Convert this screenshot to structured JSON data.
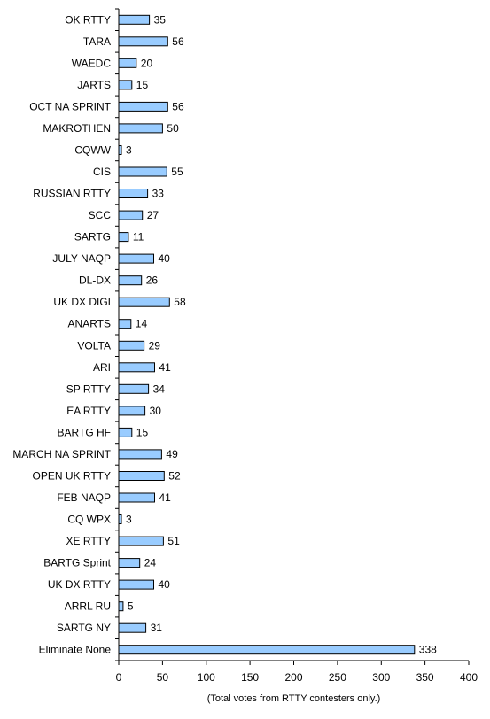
{
  "chart_data": {
    "type": "bar",
    "orientation": "horizontal",
    "categories": [
      "OK RTTY",
      "TARA",
      "WAEDC",
      "JARTS",
      "OCT NA SPRINT",
      "MAKROTHEN",
      "CQWW",
      "CIS",
      "RUSSIAN RTTY",
      "SCC",
      "SARTG",
      "JULY NAQP",
      "DL-DX",
      "UK DX DIGI",
      "ANARTS",
      "VOLTA",
      "ARI",
      "SP RTTY",
      "EA RTTY",
      "BARTG HF",
      "MARCH NA SPRINT",
      "OPEN UK RTTY",
      "FEB NAQP",
      "CQ WPX",
      "XE RTTY",
      "BARTG Sprint",
      "UK DX RTTY",
      "ARRL RU",
      "SARTG NY",
      "Eliminate None"
    ],
    "values": [
      35,
      56,
      20,
      15,
      56,
      50,
      3,
      55,
      33,
      27,
      11,
      40,
      26,
      58,
      14,
      29,
      41,
      34,
      30,
      15,
      49,
      52,
      41,
      3,
      51,
      24,
      40,
      5,
      31,
      338
    ],
    "xlabel": "(Total votes from RTTY contesters only.)",
    "xlim": [
      0,
      400
    ],
    "xticks": [
      0,
      50,
      100,
      150,
      200,
      250,
      300,
      350,
      400
    ],
    "grid": false,
    "legend": "none",
    "bar_color": "#99ccff",
    "bar_edge_color": "#000000"
  }
}
